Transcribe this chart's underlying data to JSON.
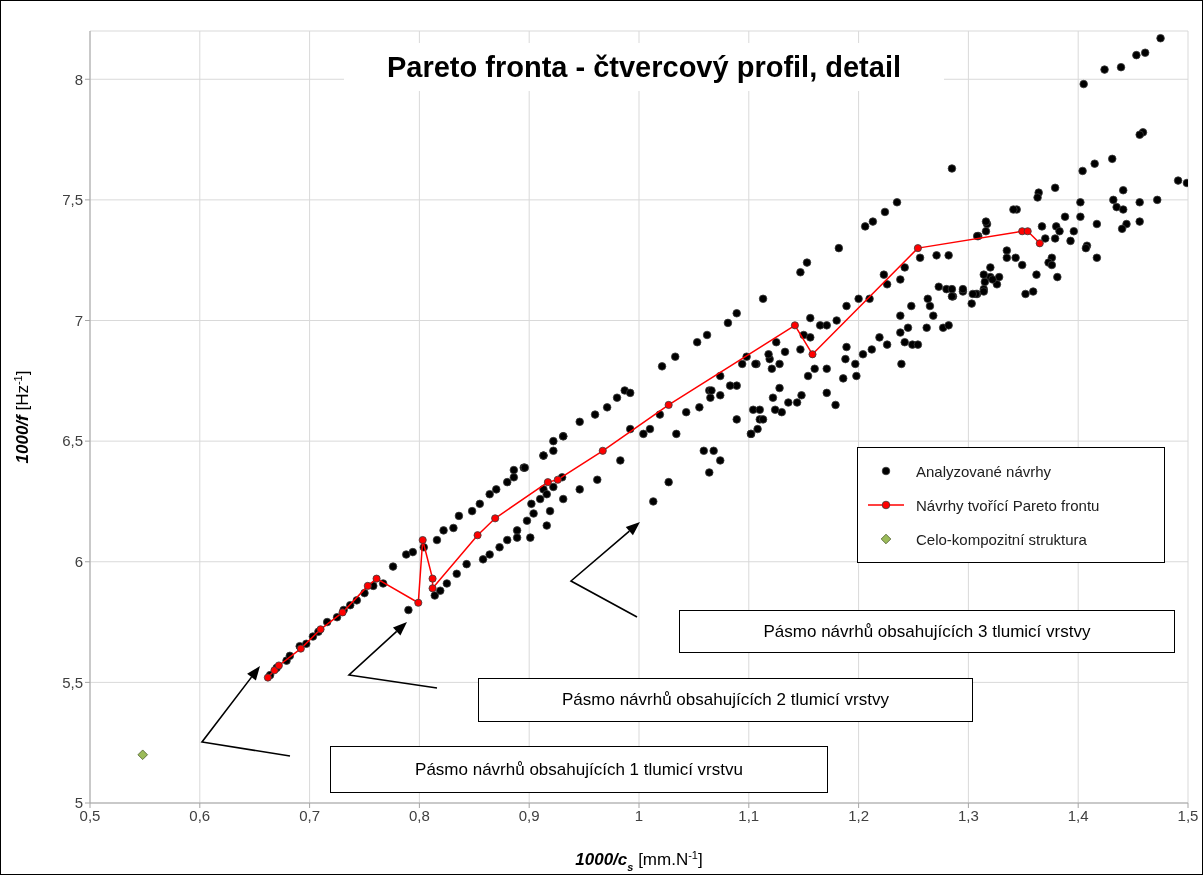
{
  "chart_data": {
    "type": "scatter",
    "title": "Pareto fronta - čtvercový profil, detail",
    "xlabel": "1000/c$_{s}$ [mm.N$^{-1}$]",
    "ylabel": "1000/f [Hz$^{-1}$]",
    "xlim": [
      0.5,
      1.5
    ],
    "ylim": [
      5,
      8.2
    ],
    "xticks": [
      {
        "value": 0.5,
        "label": "0,5"
      },
      {
        "value": 0.6,
        "label": "0,6"
      },
      {
        "value": 0.7,
        "label": "0,7"
      },
      {
        "value": 0.8,
        "label": "0,8"
      },
      {
        "value": 0.9,
        "label": "0,9"
      },
      1,
      {
        "value": 1.1,
        "label": "1,1"
      },
      {
        "value": 1.2,
        "label": "1,2"
      },
      {
        "value": 1.3,
        "label": "1,3"
      },
      {
        "value": 1.4,
        "label": "1,4"
      },
      {
        "value": 1.5,
        "label": "1,5"
      }
    ],
    "yticks": [
      5,
      {
        "value": 5.5,
        "label": "5,5"
      },
      6,
      {
        "value": 6.5,
        "label": "6,5"
      },
      7,
      {
        "value": 7.5,
        "label": "7,5"
      },
      8
    ],
    "grid": true,
    "legend": "right",
    "series": [
      {
        "name": "Analyzované návrhy",
        "marker": "circle",
        "color": "#000000",
        "x": [
          0.664,
          0.67,
          0.679,
          0.682,
          0.691,
          0.697,
          0.703,
          0.708,
          0.716,
          0.725,
          0.731,
          0.737,
          0.743,
          0.75,
          0.758,
          0.767,
          0.776,
          0.79,
          0.788,
          0.794,
          0.804,
          0.816,
          0.822,
          0.831,
          0.836,
          0.848,
          0.855,
          0.864,
          0.87,
          0.88,
          0.886,
          0.895,
          0.913,
          0.922,
          0.931,
          0.814,
          0.819,
          0.825,
          0.834,
          0.843,
          0.858,
          0.864,
          0.873,
          0.88,
          0.889,
          0.898,
          0.904,
          0.91,
          0.913,
          0.922,
          0.93,
          0.916,
          0.901,
          0.919,
          0.889,
          0.886,
          0.896,
          0.913,
          0.922,
          0.931,
          0.946,
          0.96,
          0.971,
          0.98,
          0.987,
          0.992,
          1.021,
          1.033,
          1.053,
          1.062,
          1.081,
          1.089,
          1.113,
          0.992,
          1.004,
          1.01,
          1.019,
          1.034,
          1.043,
          1.055,
          1.064,
          1.074,
          1.089,
          1.098,
          1.107,
          1.119,
          1.125,
          1.122,
          1.104,
          1.11,
          1.102,
          1.089,
          1.059,
          1.068,
          1.074,
          1.064,
          1.027,
          1.013,
          0.983,
          0.962,
          0.946,
          0.931,
          0.916,
          0.902,
          1.206,
          1.213,
          1.224,
          1.235,
          1.182,
          1.147,
          1.153,
          1.094,
          1.106,
          1.118,
          1.121,
          1.128,
          1.133,
          1.147,
          1.15,
          1.156,
          1.165,
          1.171,
          1.156,
          1.18,
          1.189,
          1.2,
          1.21,
          1.223,
          1.226,
          1.238,
          1.242,
          1.256,
          1.271,
          1.282,
          1.273,
          1.28,
          1.286,
          1.295,
          1.308,
          1.314,
          1.32,
          1.315,
          1.326,
          1.309,
          1.317,
          1.238,
          1.238,
          1.245,
          1.242,
          1.249,
          1.254,
          1.262,
          1.268,
          1.277,
          1.282,
          1.263,
          1.265,
          1.248,
          1.239,
          1.226,
          1.219,
          1.212,
          1.204,
          1.197,
          1.198,
          1.186,
          1.188,
          1.189,
          1.171,
          1.16,
          1.154,
          1.171,
          1.179,
          1.148,
          1.144,
          1.136,
          1.13,
          1.124,
          1.128,
          1.11,
          1.113,
          1.108,
          1.102,
          1.074,
          1.083,
          1.065,
          1.066,
          1.475,
          1.461,
          1.453,
          1.439,
          1.424,
          1.405,
          1.459,
          1.456,
          1.431,
          1.415,
          1.404,
          1.379,
          1.364,
          1.363,
          1.344,
          1.341,
          1.316,
          1.316,
          1.308,
          1.285,
          1.491,
          1.499,
          1.472,
          1.456,
          1.441,
          1.432,
          1.435,
          1.441,
          1.456,
          1.444,
          1.44,
          1.417,
          1.402,
          1.402,
          1.388,
          1.396,
          1.393,
          1.38,
          1.383,
          1.379,
          1.367,
          1.37,
          1.417,
          1.408,
          1.407,
          1.381,
          1.376,
          1.373,
          1.376,
          1.362,
          1.359,
          1.352,
          1.349,
          1.343,
          1.335,
          1.335,
          1.328,
          1.322,
          1.32,
          1.314,
          1.314,
          1.307,
          1.304,
          1.303,
          1.295,
          1.285,
          1.285
        ],
        "values": [
          5.53,
          5.56,
          5.59,
          5.61,
          5.65,
          5.66,
          5.69,
          5.71,
          5.75,
          5.77,
          5.8,
          5.82,
          5.84,
          5.87,
          5.9,
          5.91,
          5.98,
          5.8,
          6.03,
          6.04,
          6.06,
          6.09,
          6.13,
          6.14,
          6.19,
          6.21,
          6.24,
          6.28,
          6.3,
          6.33,
          6.35,
          6.39,
          6.44,
          6.46,
          6.52,
          5.86,
          5.88,
          5.91,
          5.95,
          5.99,
          6.01,
          6.03,
          6.06,
          6.09,
          6.13,
          6.17,
          6.2,
          6.26,
          6.3,
          6.31,
          6.35,
          6.15,
          6.1,
          6.21,
          6.1,
          6.38,
          6.39,
          6.44,
          6.5,
          6.52,
          6.58,
          6.61,
          6.64,
          6.68,
          6.71,
          6.7,
          6.81,
          6.85,
          6.91,
          6.94,
          6.99,
          7.03,
          7.09,
          6.55,
          6.53,
          6.55,
          6.61,
          6.53,
          6.62,
          6.64,
          6.71,
          6.77,
          6.73,
          6.85,
          6.82,
          6.84,
          6.91,
          6.68,
          6.63,
          6.59,
          6.53,
          6.59,
          6.46,
          6.46,
          6.42,
          6.37,
          6.33,
          6.25,
          6.42,
          6.34,
          6.3,
          6.26,
          6.28,
          6.24,
          7.39,
          7.41,
          7.45,
          7.49,
          7.3,
          7.2,
          7.24,
          6.82,
          6.82,
          6.86,
          6.8,
          6.82,
          6.87,
          6.88,
          6.94,
          6.93,
          6.98,
          6.98,
          7.01,
          7.0,
          7.06,
          7.09,
          7.09,
          7.19,
          7.15,
          7.17,
          7.22,
          7.26,
          7.27,
          7.27,
          7.14,
          7.13,
          7.1,
          7.12,
          7.11,
          7.13,
          7.18,
          7.16,
          7.15,
          7.35,
          7.4,
          7.02,
          6.95,
          6.97,
          6.91,
          6.9,
          6.9,
          6.97,
          7.02,
          6.97,
          6.98,
          7.09,
          7.06,
          7.06,
          6.82,
          6.9,
          6.93,
          6.88,
          6.86,
          6.82,
          6.77,
          6.76,
          6.84,
          6.89,
          6.8,
          6.8,
          6.77,
          6.7,
          6.65,
          6.69,
          6.66,
          6.66,
          6.62,
          6.63,
          6.72,
          6.63,
          6.59,
          6.55,
          6.53,
          6.69,
          6.73,
          6.68,
          6.71,
          8.17,
          8.11,
          8.1,
          8.05,
          8.04,
          7.98,
          7.78,
          7.77,
          7.67,
          7.65,
          7.62,
          7.55,
          7.53,
          7.51,
          7.46,
          7.46,
          7.41,
          7.37,
          7.35,
          7.63,
          7.58,
          7.57,
          7.5,
          7.49,
          7.54,
          7.5,
          7.47,
          7.46,
          7.41,
          7.4,
          7.38,
          7.4,
          7.49,
          7.43,
          7.43,
          7.37,
          7.33,
          7.39,
          7.37,
          7.34,
          7.39,
          7.34,
          7.26,
          7.31,
          7.3,
          7.18,
          7.26,
          7.24,
          7.23,
          7.19,
          7.12,
          7.11,
          7.23,
          7.26,
          7.29,
          7.26,
          7.18,
          7.17,
          7.22,
          7.19,
          7.12,
          7.11,
          7.11,
          7.07,
          7.13,
          7.13,
          7.1
        ]
      },
      {
        "name": "Návrhy tvořící Pareto frontu",
        "type": "line",
        "marker": "circle",
        "color": "#ff0000",
        "x": [
          0.662,
          0.668,
          0.672,
          0.692,
          0.71,
          0.73,
          0.753,
          0.761,
          0.799,
          0.803,
          0.812,
          0.812,
          0.853,
          0.869,
          0.917,
          0.926,
          0.967,
          1.027,
          1.142,
          1.158,
          1.254,
          1.349,
          1.354,
          1.365
        ],
        "values": [
          5.52,
          5.55,
          5.57,
          5.64,
          5.72,
          5.79,
          5.9,
          5.93,
          5.83,
          6.09,
          5.93,
          5.89,
          6.11,
          6.18,
          6.33,
          6.34,
          6.46,
          6.65,
          6.98,
          6.86,
          7.3,
          7.37,
          7.37,
          7.32
        ]
      },
      {
        "name": "Celo-kompozitní struktura",
        "marker": "diamond",
        "color": "#9bbb59",
        "x": [
          0.548
        ],
        "values": [
          5.2
        ]
      }
    ],
    "annotations": [
      "Pásmo návrhů obsahujících 1 tlumicí vrstvu",
      "Pásmo návrhů obsahujících 2 tlumicí vrstvy",
      "Pásmo návrhů obsahujících 3 tlumicí vrstvy"
    ]
  }
}
